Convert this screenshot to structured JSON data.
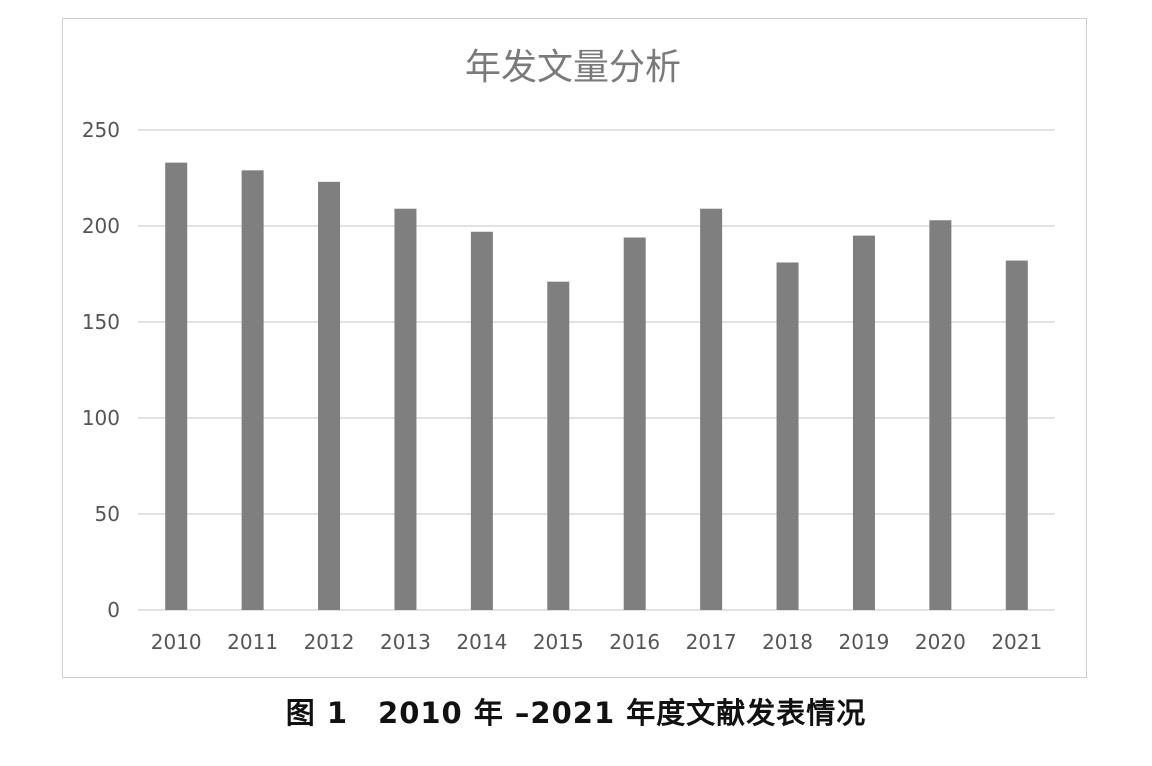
{
  "chart_data": {
    "type": "bar",
    "title": "年发文量分析",
    "categories": [
      "2010",
      "2011",
      "2012",
      "2013",
      "2014",
      "2015",
      "2016",
      "2017",
      "2018",
      "2019",
      "2020",
      "2021"
    ],
    "values": [
      233,
      229,
      223,
      209,
      197,
      171,
      194,
      209,
      181,
      195,
      203,
      182
    ],
    "yticks": [
      "0",
      "50",
      "100",
      "150",
      "200",
      "250"
    ],
    "ylim": [
      0,
      250
    ],
    "grid": true,
    "legend": "none",
    "colors": {
      "bar": "#7f7f7f",
      "grid": "#d9d9d9",
      "frame": "#cfcfcf"
    }
  },
  "caption": "图 1　2010 年 –2021 年度文献发表情况"
}
